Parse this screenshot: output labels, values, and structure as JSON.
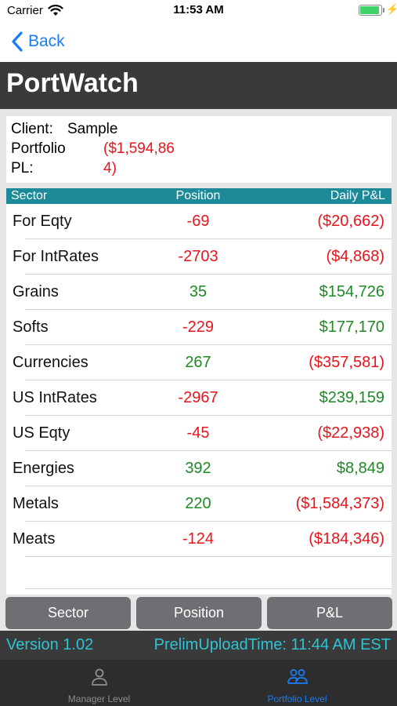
{
  "status_bar": {
    "carrier": "Carrier",
    "time": "11:53 AM",
    "wifi_icon": "wifi-icon",
    "battery_icon": "battery-icon"
  },
  "nav": {
    "back_label": "Back",
    "back_icon": "chevron-left-icon"
  },
  "app_title": "PortWatch",
  "summary": {
    "client_label": "Client:",
    "client_value": "Sample",
    "portfolio_label": "Portfolio",
    "pl_label": "PL:",
    "pl_value_line1": "($1,594,86",
    "pl_value_line2": "4)"
  },
  "table": {
    "headers": {
      "sector": "Sector",
      "position": "Position",
      "daily_pnl": "Daily P&L"
    },
    "rows": [
      {
        "sector": "For Eqty",
        "position": "-69",
        "daily_pnl": "($20,662)"
      },
      {
        "sector": "For IntRates",
        "position": "-2703",
        "daily_pnl": "($4,868)"
      },
      {
        "sector": "Grains",
        "position": "35",
        "daily_pnl": "$154,726"
      },
      {
        "sector": "Softs",
        "position": "-229",
        "daily_pnl": "$177,170"
      },
      {
        "sector": "Currencies",
        "position": "267",
        "daily_pnl": "($357,581)"
      },
      {
        "sector": "US IntRates",
        "position": "-2967",
        "daily_pnl": "$239,159"
      },
      {
        "sector": "US Eqty",
        "position": "-45",
        "daily_pnl": "($22,938)"
      },
      {
        "sector": "Energies",
        "position": "392",
        "daily_pnl": "$8,849"
      },
      {
        "sector": "Metals",
        "position": "220",
        "daily_pnl": "($1,584,373)"
      },
      {
        "sector": "Meats",
        "position": "-124",
        "daily_pnl": "($184,346)"
      }
    ]
  },
  "sort_buttons": {
    "sector": "Sector",
    "position": "Position",
    "pnl": "P&L"
  },
  "footer": {
    "version": "Version 1.02",
    "upload_time": "PrelimUploadTime: 11:44 AM EST"
  },
  "tabs": [
    {
      "label": "Manager Level",
      "icon": "person-icon",
      "active": false
    },
    {
      "label": "Portfolio Level",
      "icon": "people-icon",
      "active": true
    }
  ],
  "colors": {
    "negative": "#e8141c",
    "positive": "#1d8a24",
    "header_teal": "#1d8a99",
    "accent_blue": "#1a7cf5",
    "footer_text": "#2ec4d6",
    "active_tab": "#1a7cf5",
    "inactive_tab": "#8e8e93"
  }
}
